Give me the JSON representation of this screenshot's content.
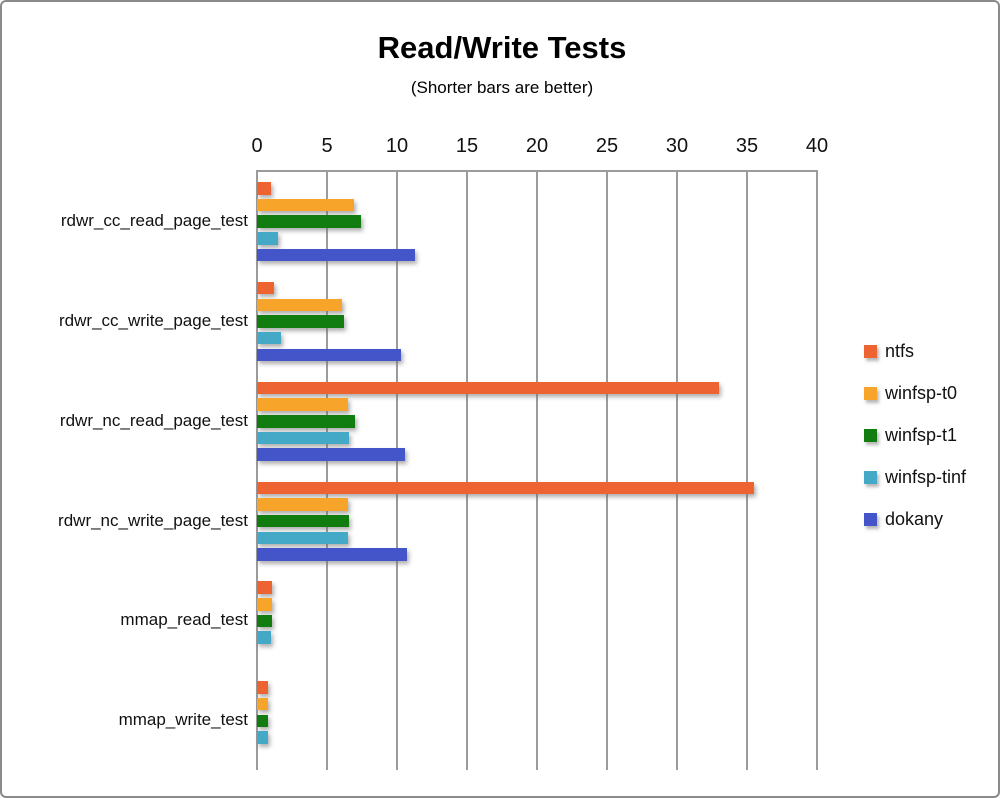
{
  "title": "Read/Write Tests",
  "subtitle": "(Shorter bars are better)",
  "chart_data": {
    "type": "bar",
    "orientation": "horizontal",
    "title": "Read/Write Tests",
    "subtitle": "(Shorter bars are better)",
    "xlabel": "",
    "ylabel": "",
    "xlim": [
      0,
      40
    ],
    "xticks": [
      0,
      5,
      10,
      15,
      20,
      25,
      30,
      35,
      40
    ],
    "grid": true,
    "legend_position": "right",
    "categories": [
      "rdwr_cc_read_page_test",
      "rdwr_cc_write_page_test",
      "rdwr_nc_read_page_test",
      "rdwr_nc_write_page_test",
      "mmap_read_test",
      "mmap_write_test"
    ],
    "series": [
      {
        "name": "ntfs",
        "color": "#EE6332",
        "values": [
          1.0,
          1.2,
          33.0,
          35.5,
          1.1,
          0.8
        ]
      },
      {
        "name": "winfsp-t0",
        "color": "#F7A42A",
        "values": [
          6.9,
          6.1,
          6.5,
          6.5,
          1.1,
          0.8
        ]
      },
      {
        "name": "winfsp-t1",
        "color": "#117D11",
        "values": [
          7.4,
          6.2,
          7.0,
          6.6,
          1.1,
          0.8
        ]
      },
      {
        "name": "winfsp-tinf",
        "color": "#43A9C7",
        "values": [
          1.5,
          1.7,
          6.6,
          6.5,
          1.0,
          0.8
        ]
      },
      {
        "name": "dokany",
        "color": "#4355C8",
        "values": [
          11.3,
          10.3,
          10.6,
          10.7,
          null,
          null
        ]
      }
    ]
  }
}
